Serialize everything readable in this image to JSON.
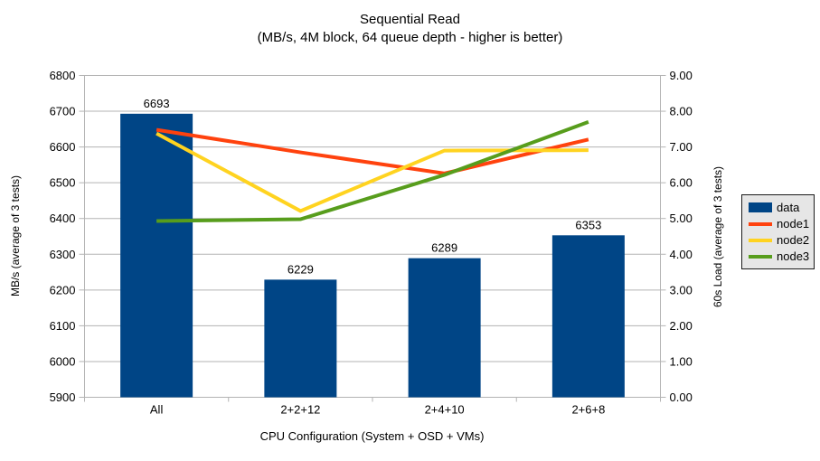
{
  "chart_data": {
    "type": "combo",
    "title": "Sequential Read",
    "subtitle": "(MB/s, 4M block, 64 queue depth - higher is better)",
    "xlabel": "CPU Configuration (System + OSD + VMs)",
    "ylabel_left": "MB/s (average of 3 tests)",
    "ylabel_right": "60s Load (average of 3 tests)",
    "categories": [
      "All",
      "2+2+12",
      "2+4+10",
      "2+6+8"
    ],
    "y_left": {
      "min": 5900,
      "max": 6800,
      "step": 100
    },
    "y_right": {
      "min": 0,
      "max": 9,
      "step": 1,
      "decimals": 2
    },
    "grid": true,
    "grid_color": "#b3b3b3",
    "axis_color": "#b3b3b3",
    "legend_position": "right",
    "series": [
      {
        "name": "data",
        "type": "bar",
        "axis": "left",
        "color": "#004586",
        "values": [
          6693,
          6229,
          6289,
          6353
        ]
      },
      {
        "name": "node1",
        "type": "line",
        "axis": "right",
        "color": "#ff420e",
        "values": [
          7.48,
          6.85,
          6.26,
          7.21
        ]
      },
      {
        "name": "node2",
        "type": "line",
        "axis": "right",
        "color": "#ffd320",
        "values": [
          7.38,
          5.21,
          6.9,
          6.91
        ]
      },
      {
        "name": "node3",
        "type": "line",
        "axis": "right",
        "color": "#579d1c",
        "values": [
          4.93,
          4.98,
          6.22,
          7.7
        ]
      }
    ]
  }
}
